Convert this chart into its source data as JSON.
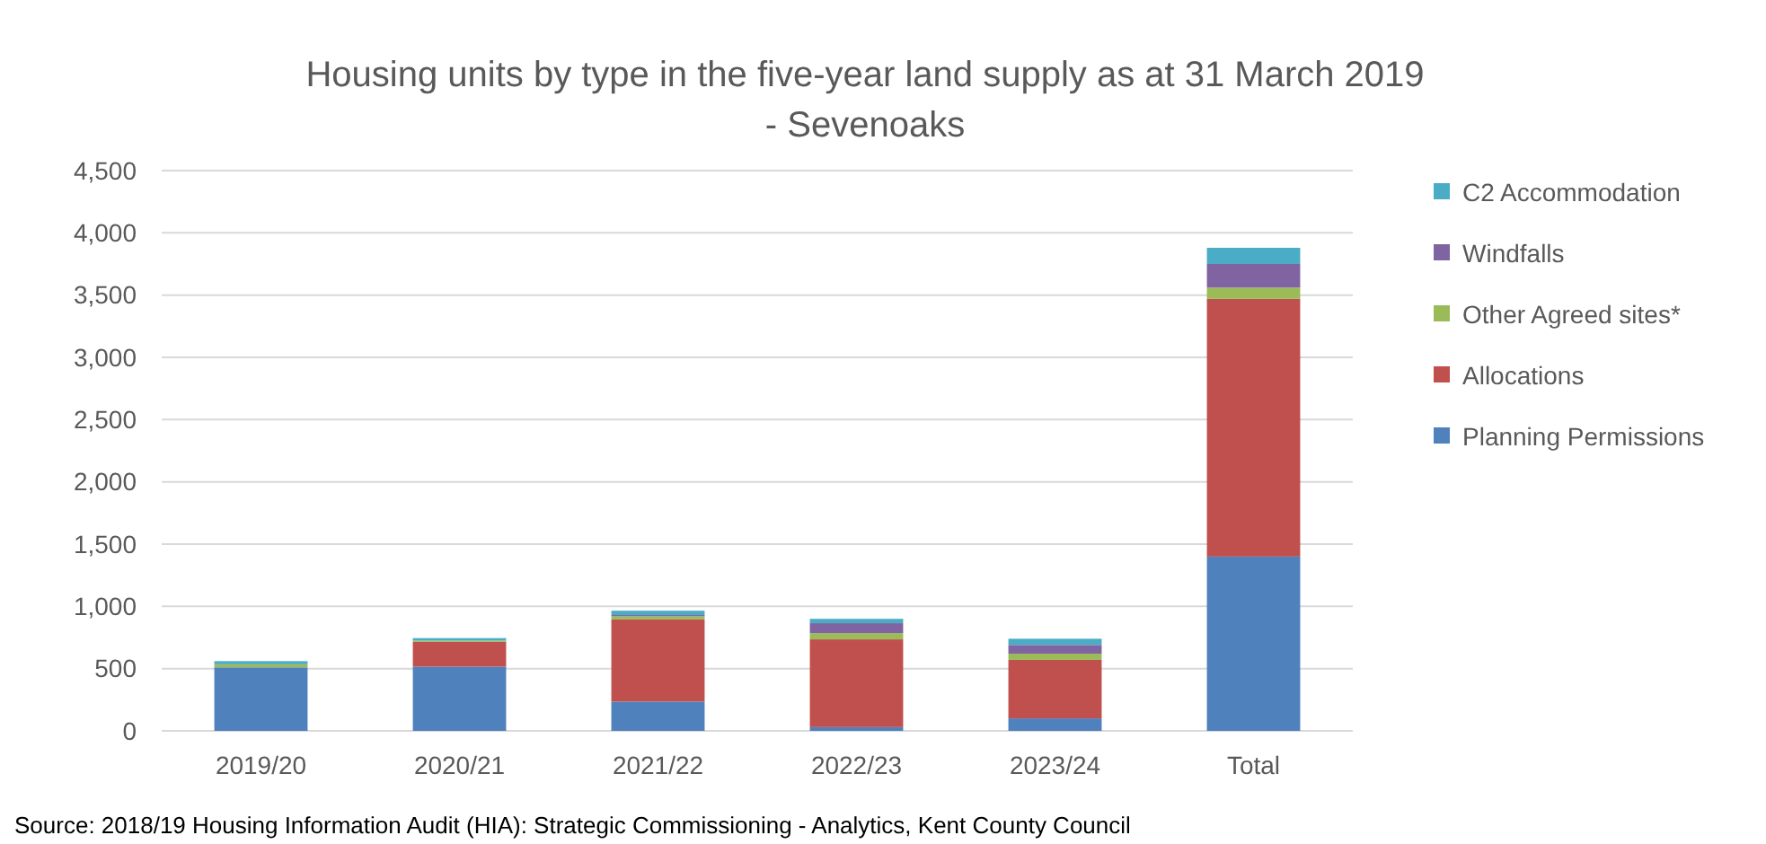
{
  "chart_data": {
    "type": "bar",
    "stacked": true,
    "title": "Housing units by type in the five-year land supply as at 31 March 2019 - Sevenoaks",
    "categories": [
      "2019/20",
      "2020/21",
      "2021/22",
      "2022/23",
      "2023/24",
      "Total"
    ],
    "series": [
      {
        "name": "Planning Permissions",
        "color": "#4f81bd",
        "values": [
          510,
          515,
          235,
          30,
          100,
          1400
        ]
      },
      {
        "name": "Allocations",
        "color": "#c0504d",
        "values": [
          0,
          200,
          660,
          705,
          470,
          2070
        ]
      },
      {
        "name": "Other Agreed sites*",
        "color": "#9bbb59",
        "values": [
          25,
          10,
          25,
          50,
          50,
          90
        ]
      },
      {
        "name": "Windfalls",
        "color": "#8064a2",
        "values": [
          0,
          0,
          10,
          80,
          70,
          190
        ]
      },
      {
        "name": "C2 Accommodation",
        "color": "#4bacc6",
        "values": [
          25,
          20,
          35,
          35,
          50,
          130
        ]
      }
    ],
    "ylim": [
      0,
      4500
    ],
    "yticks": [
      {
        "value": 0,
        "label": "0"
      },
      {
        "value": 500,
        "label": "500"
      },
      {
        "value": 1000,
        "label": "1,000"
      },
      {
        "value": 1500,
        "label": "1,500"
      },
      {
        "value": 2000,
        "label": "2,000"
      },
      {
        "value": 2500,
        "label": "2,500"
      },
      {
        "value": 3000,
        "label": "3,000"
      },
      {
        "value": 3500,
        "label": "3,500"
      },
      {
        "value": 4000,
        "label": "4,000"
      },
      {
        "value": 4500,
        "label": "4,500"
      }
    ],
    "grid": "y",
    "legend": "right",
    "annotations": [
      "Source: 2018/19 Housing Information Audit (HIA): Strategic Commissioning - Analytics, Kent County Council"
    ]
  }
}
